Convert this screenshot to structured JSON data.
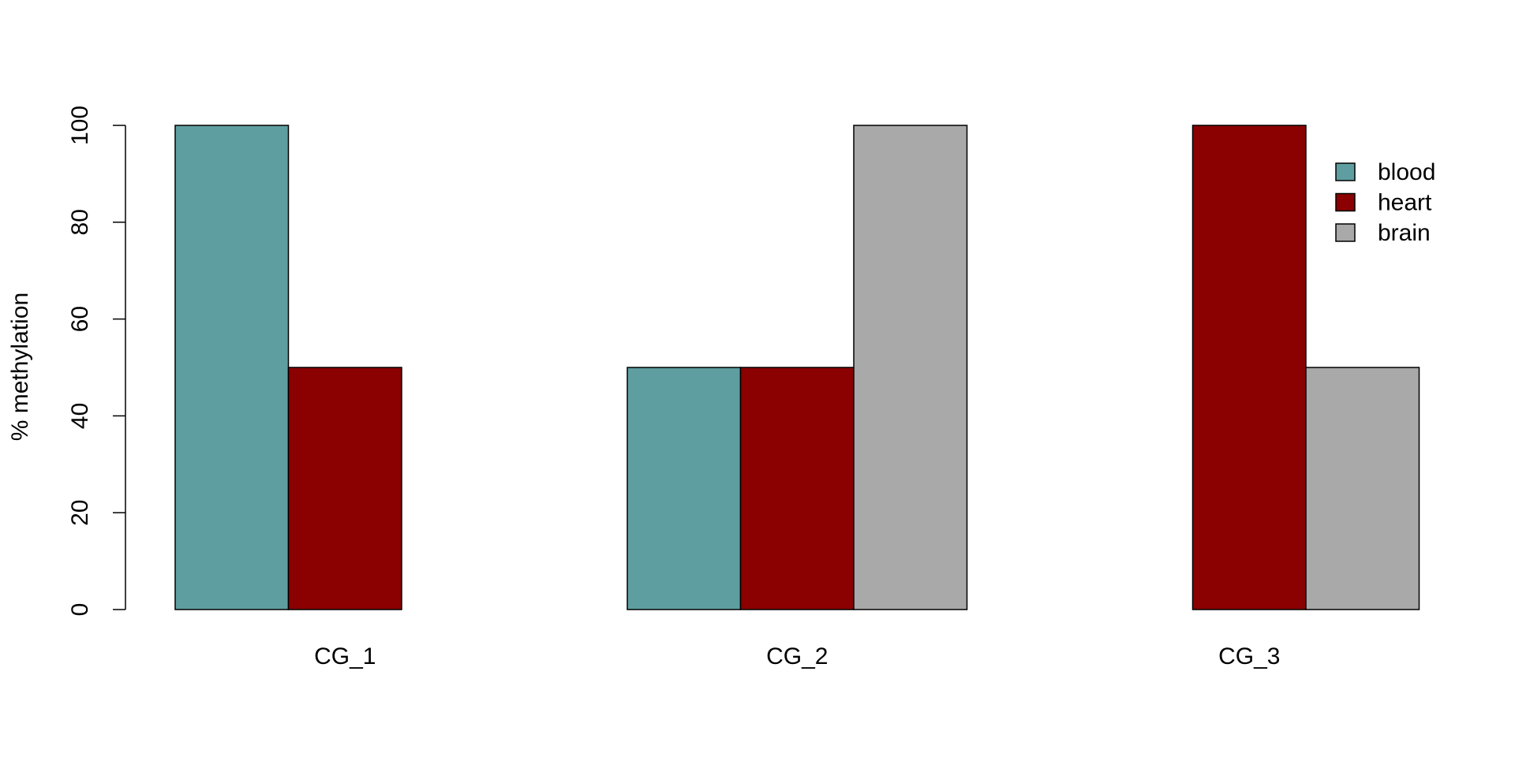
{
  "chart_data": {
    "type": "bar",
    "title": "",
    "xlabel": "",
    "ylabel": "% methylation",
    "ylim": [
      0,
      100
    ],
    "yticks": [
      "0",
      "20",
      "40",
      "60",
      "80",
      "100"
    ],
    "categories": [
      "CG_1",
      "CG_2",
      "CG_3"
    ],
    "series": [
      {
        "name": "blood",
        "values": [
          100,
          50,
          0
        ],
        "color": "#5F9EA0"
      },
      {
        "name": "heart",
        "values": [
          50,
          50,
          100
        ],
        "color": "#8B0000"
      },
      {
        "name": "brain",
        "values": [
          0,
          100,
          50
        ],
        "color": "#A9A9A9"
      }
    ],
    "grid": false,
    "legend_position": "top-right"
  }
}
